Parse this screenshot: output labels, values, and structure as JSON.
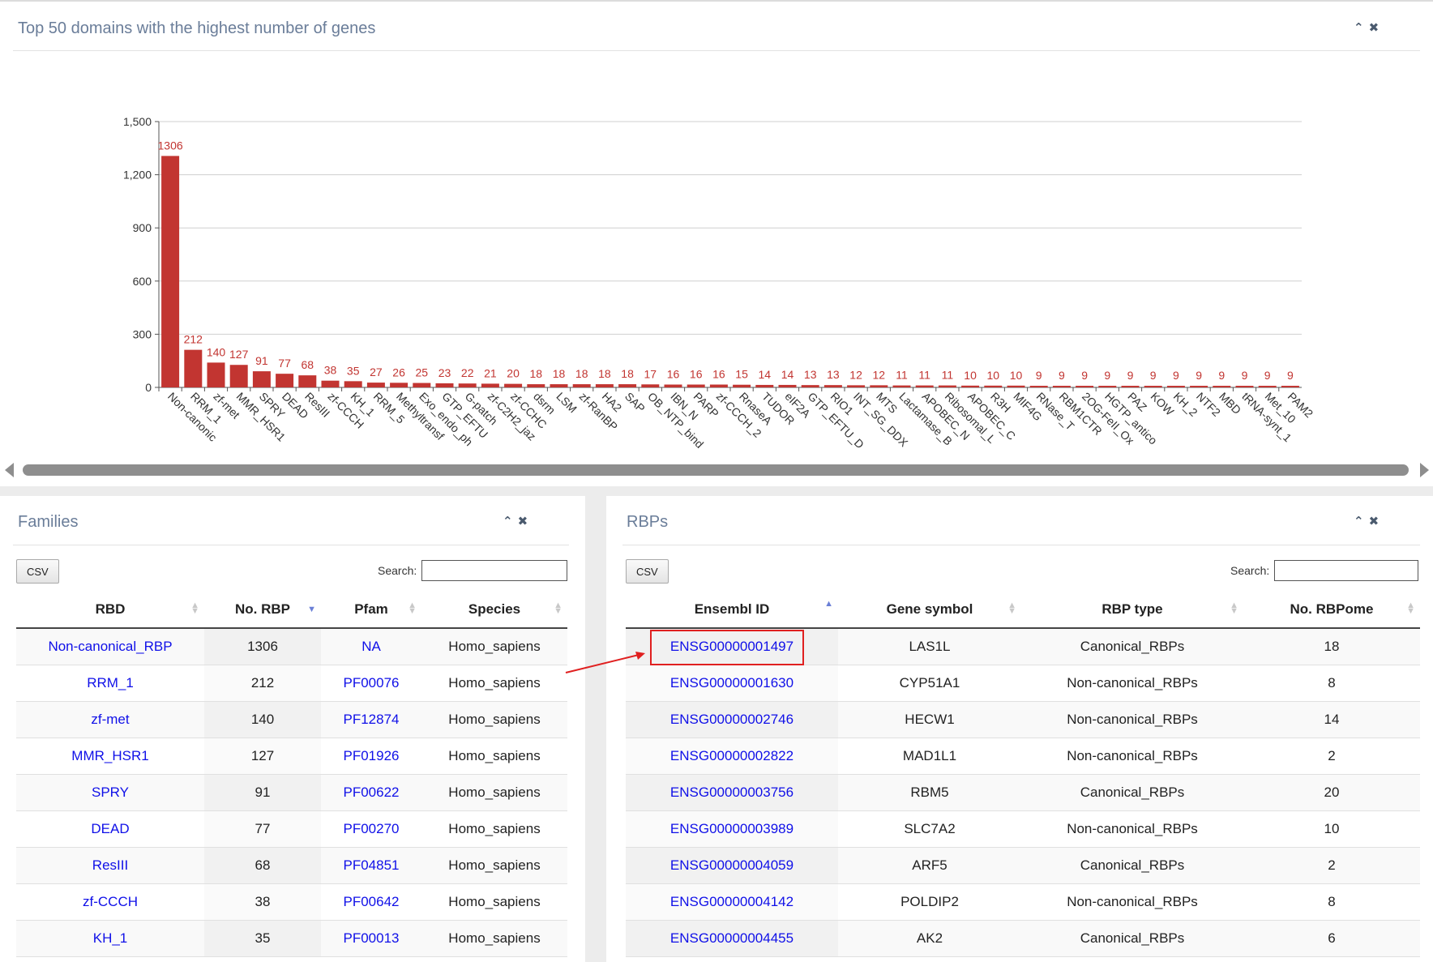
{
  "top_panel": {
    "title": "Top 50 domains with the highest number of genes",
    "collapse_icon": "chevron-up-icon",
    "close_icon": "close-icon"
  },
  "chart_data": {
    "type": "bar",
    "title": "",
    "xlabel": "",
    "ylabel": "",
    "ylim": [
      0,
      1500
    ],
    "y_ticks": [
      "0",
      "300",
      "600",
      "900",
      "1,200",
      "1,500"
    ],
    "grid": true,
    "bar_color": "#c23531",
    "categories": [
      "Non-canonic",
      "RRM_1",
      "zf-met",
      "MMR_HSR1",
      "SPRY",
      "DEAD",
      "ResIII",
      "zf-CCCH",
      "KH_1",
      "RRM_5",
      "Methyltransf",
      "Exo_endo_ph",
      "GTP_EFTU",
      "G-patch",
      "zf-C2H2_jaz",
      "zf-CCHC",
      "dsrm",
      "LSM",
      "zf-RanBP",
      "HA2",
      "SAP",
      "OB_NTP_bind",
      "IBN_N",
      "PARP",
      "zf-CCCH_2",
      "RnaseA",
      "TUDOR",
      "eIF2A",
      "GTP_EFTU_D",
      "RIO1",
      "INT_SG_DDX",
      "MTS",
      "Lactamase_B",
      "APOBEC_N",
      "Ribosomal_L",
      "APOBEC_C",
      "R3H",
      "MIF4G",
      "RNase_T",
      "RBM1CTR",
      "2OG-FeII_Ox",
      "HGTP_antico",
      "PAZ",
      "KOW",
      "KH_2",
      "NTF2",
      "MBD",
      "tRNA-synt_1",
      "Met_10",
      "PAM2"
    ],
    "values": [
      1306,
      212,
      140,
      127,
      91,
      77,
      68,
      38,
      35,
      27,
      26,
      25,
      23,
      22,
      21,
      20,
      18,
      18,
      18,
      18,
      18,
      17,
      16,
      16,
      16,
      15,
      14,
      14,
      13,
      13,
      12,
      12,
      11,
      11,
      11,
      10,
      10,
      10,
      9,
      9,
      9,
      9,
      9,
      9,
      9,
      9,
      9,
      9,
      9,
      9
    ]
  },
  "families_panel": {
    "title": "Families",
    "csv_label": "CSV",
    "search_label": "Search:",
    "search_value": "",
    "columns": [
      "RBD",
      "No. RBP",
      "Pfam",
      "Species"
    ],
    "rows": [
      {
        "rbd": "Non-canonical_RBP",
        "no_rbp": "1306",
        "pfam": "NA",
        "species": "Homo_sapiens"
      },
      {
        "rbd": "RRM_1",
        "no_rbp": "212",
        "pfam": "PF00076",
        "species": "Homo_sapiens"
      },
      {
        "rbd": "zf-met",
        "no_rbp": "140",
        "pfam": "PF12874",
        "species": "Homo_sapiens"
      },
      {
        "rbd": "MMR_HSR1",
        "no_rbp": "127",
        "pfam": "PF01926",
        "species": "Homo_sapiens"
      },
      {
        "rbd": "SPRY",
        "no_rbp": "91",
        "pfam": "PF00622",
        "species": "Homo_sapiens"
      },
      {
        "rbd": "DEAD",
        "no_rbp": "77",
        "pfam": "PF00270",
        "species": "Homo_sapiens"
      },
      {
        "rbd": "ResIII",
        "no_rbp": "68",
        "pfam": "PF04851",
        "species": "Homo_sapiens"
      },
      {
        "rbd": "zf-CCCH",
        "no_rbp": "38",
        "pfam": "PF00642",
        "species": "Homo_sapiens"
      },
      {
        "rbd": "KH_1",
        "no_rbp": "35",
        "pfam": "PF00013",
        "species": "Homo_sapiens"
      }
    ]
  },
  "rbps_panel": {
    "title": "RBPs",
    "csv_label": "CSV",
    "search_label": "Search:",
    "search_value": "",
    "columns": [
      "Ensembl ID",
      "Gene symbol",
      "RBP type",
      "No. RBPome"
    ],
    "rows": [
      {
        "ensembl": "ENSG00000001497",
        "symbol": "LAS1L",
        "type": "Canonical_RBPs",
        "rbpome": "18"
      },
      {
        "ensembl": "ENSG00000001630",
        "symbol": "CYP51A1",
        "type": "Non-canonical_RBPs",
        "rbpome": "8"
      },
      {
        "ensembl": "ENSG00000002746",
        "symbol": "HECW1",
        "type": "Non-canonical_RBPs",
        "rbpome": "14"
      },
      {
        "ensembl": "ENSG00000002822",
        "symbol": "MAD1L1",
        "type": "Non-canonical_RBPs",
        "rbpome": "2"
      },
      {
        "ensembl": "ENSG00000003756",
        "symbol": "RBM5",
        "type": "Canonical_RBPs",
        "rbpome": "20"
      },
      {
        "ensembl": "ENSG00000003989",
        "symbol": "SLC7A2",
        "type": "Non-canonical_RBPs",
        "rbpome": "10"
      },
      {
        "ensembl": "ENSG00000004059",
        "symbol": "ARF5",
        "type": "Canonical_RBPs",
        "rbpome": "2"
      },
      {
        "ensembl": "ENSG00000004142",
        "symbol": "POLDIP2",
        "type": "Non-canonical_RBPs",
        "rbpome": "8"
      },
      {
        "ensembl": "ENSG00000004455",
        "symbol": "AK2",
        "type": "Canonical_RBPs",
        "rbpome": "6"
      }
    ]
  },
  "annotation": {
    "highlight_color": "#e02020"
  }
}
